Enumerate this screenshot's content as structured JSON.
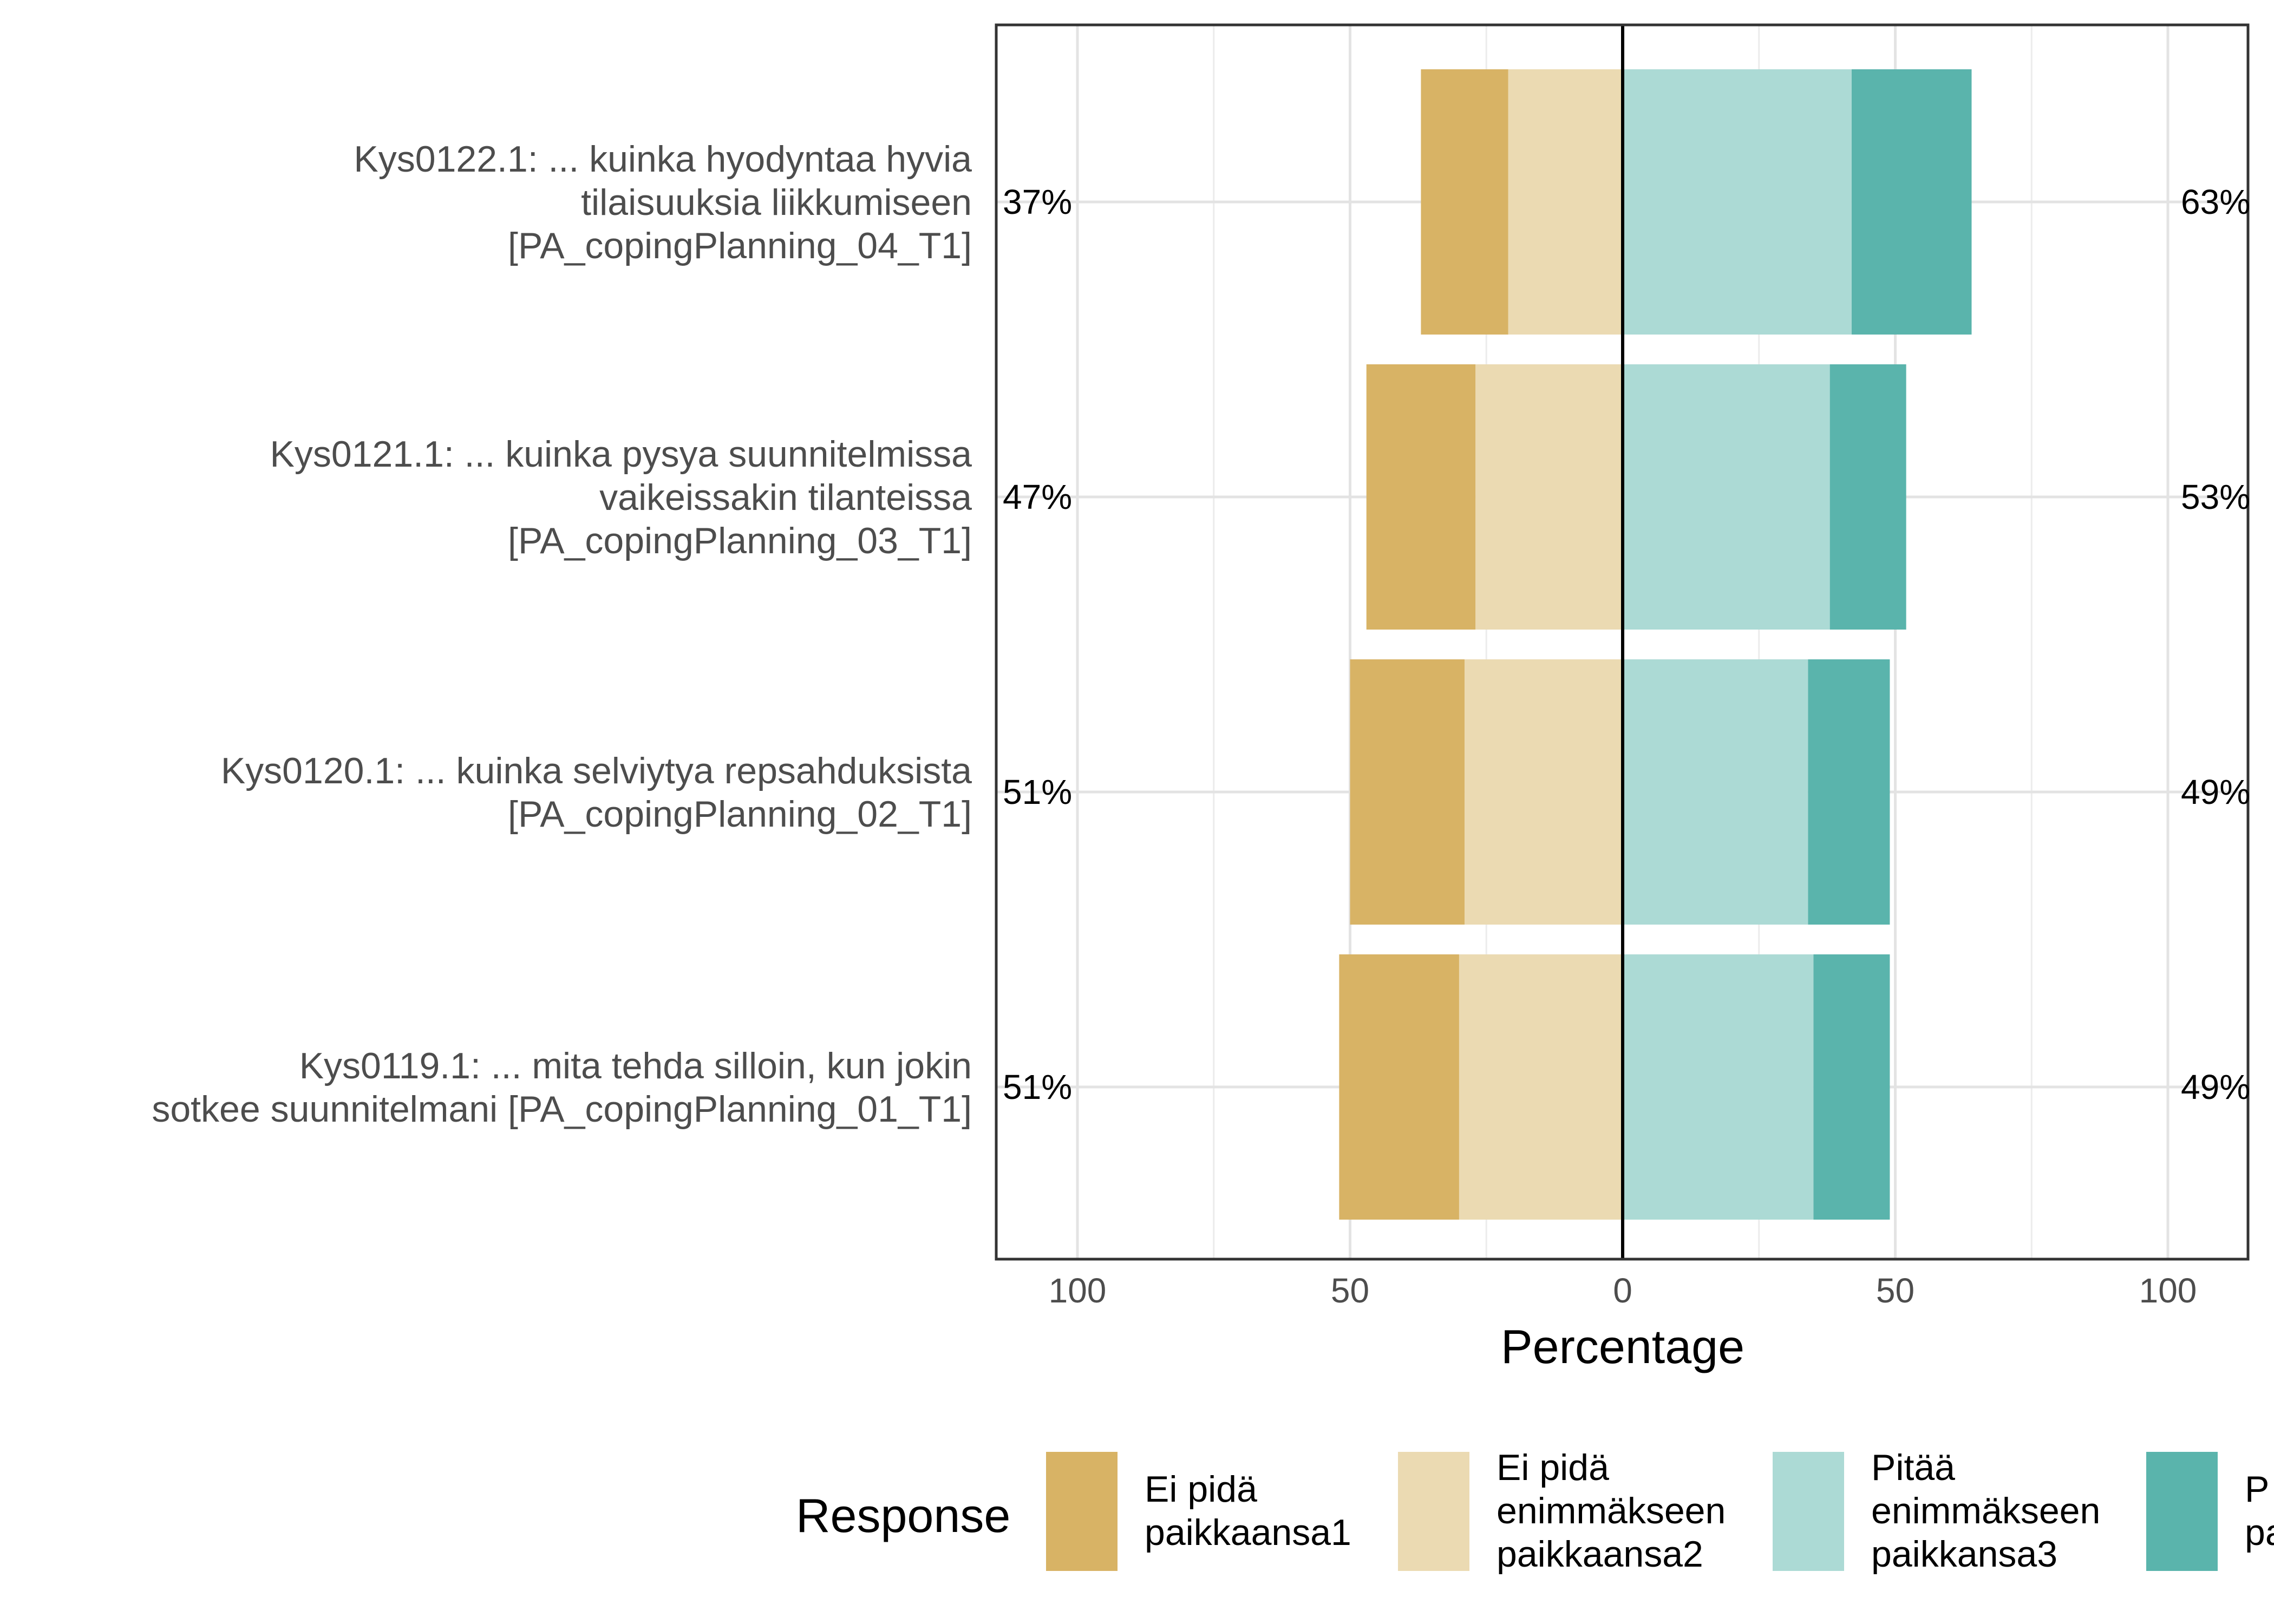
{
  "chart_data": {
    "type": "bar",
    "orientation": "horizontal",
    "stacked": "diverging",
    "xlabel": "Percentage",
    "xlim": [
      -115,
      115
    ],
    "xticks": [
      -100,
      -50,
      0,
      50,
      100
    ],
    "xtick_labels": [
      "100",
      "50",
      "0",
      "50",
      "100"
    ],
    "grid": true,
    "legend": {
      "title": "Response",
      "position": "bottom",
      "entries": [
        [
          "Ei pidä",
          "paikkaansa1"
        ],
        [
          "Ei pidä",
          "enimmäkseen",
          "paikkaansa2"
        ],
        [
          "Pitää",
          "enimmäkseen",
          "paikkansa3"
        ],
        [
          "P",
          "pa"
        ]
      ]
    },
    "categories": [
      [
        "Kys0122.1: ... kuinka hyodyntaa hyvia",
        "tilaisuuksia liikkumiseen",
        "[PA_copingPlanning_04_T1]"
      ],
      [
        "Kys0121.1: ... kuinka pysya suunnitelmissa",
        "vaikeissakin tilanteissa",
        "[PA_copingPlanning_03_T1]"
      ],
      [
        "Kys0120.1: ... kuinka selviytya repsahduksista",
        "[PA_copingPlanning_02_T1]"
      ],
      [
        "Kys0119.1: ... mita tehda silloin, kun jokin",
        "sotkee suunnitelmani [PA_copingPlanning_01_T1]"
      ]
    ],
    "series": [
      {
        "name": "Ei pidä paikkaansa1",
        "side": "negative",
        "color": "#d8b365",
        "values": [
          16,
          20,
          21,
          22
        ]
      },
      {
        "name": "Ei pidä enimmäkseen paikkaansa2",
        "side": "negative",
        "color": "#ebdab2",
        "values": [
          21,
          27,
          29,
          30
        ]
      },
      {
        "name": "Pitää enimmäkseen paikkansa3",
        "side": "positive",
        "color": "#acdad5",
        "values": [
          42,
          38,
          34,
          35
        ]
      },
      {
        "name": "",
        "side": "positive",
        "color": "#5ab4ac",
        "values": [
          22,
          14,
          15,
          14
        ]
      }
    ],
    "left_percentages": [
      "37%",
      "47%",
      "51%",
      "51%"
    ],
    "right_percentages": [
      "63%",
      "53%",
      "49%",
      "49%"
    ]
  }
}
